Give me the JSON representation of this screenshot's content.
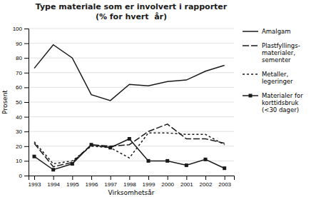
{
  "chart_data": {
    "type": "line",
    "title": "Type materiale som er involvert i rapporter",
    "subtitle": "(% for hvert  år)",
    "x_label": "Virksomhetsår",
    "y_label": "Prosent",
    "x": [
      1993,
      1994,
      1995,
      1996,
      1997,
      1998,
      1999,
      2000,
      2001,
      2002,
      2003
    ],
    "xlim": [
      1992.7,
      2003.5
    ],
    "xticks": [
      1993,
      1994,
      1995,
      1996,
      1997,
      1998,
      1999,
      2000,
      2001,
      2002,
      2003
    ],
    "ylim": [
      0,
      100
    ],
    "yticks": [
      0,
      10,
      20,
      30,
      40,
      50,
      60,
      70,
      80,
      90,
      100
    ],
    "grid": true,
    "legend": "right",
    "series": [
      {
        "name": "Amalgam",
        "color": "#1a1a1a",
        "line_style": "solid",
        "values": [
          73,
          89,
          80,
          55,
          51,
          62,
          61,
          64,
          65,
          71,
          75
        ]
      },
      {
        "name": "Plastfyllings-\nmaterialer,\nsementer",
        "color": "#1a1a1a",
        "line_style": "dashed",
        "values": [
          22,
          6,
          9,
          21,
          20,
          21,
          30,
          35,
          25,
          25,
          22
        ]
      },
      {
        "name": "Metaller,\nlegeringer",
        "color": "#1a1a1a",
        "line_style": "dotted",
        "values": [
          23,
          8,
          10,
          20,
          19,
          12,
          29,
          29,
          28,
          28,
          21
        ]
      },
      {
        "name": "Materialer for\nkorttidsbruk\n(<30 dager)",
        "color": "#1a1a1a",
        "line_style": "solid",
        "marker": "square",
        "values": [
          13,
          4,
          8,
          21,
          19,
          25,
          10,
          10,
          7,
          11,
          5
        ]
      }
    ]
  }
}
